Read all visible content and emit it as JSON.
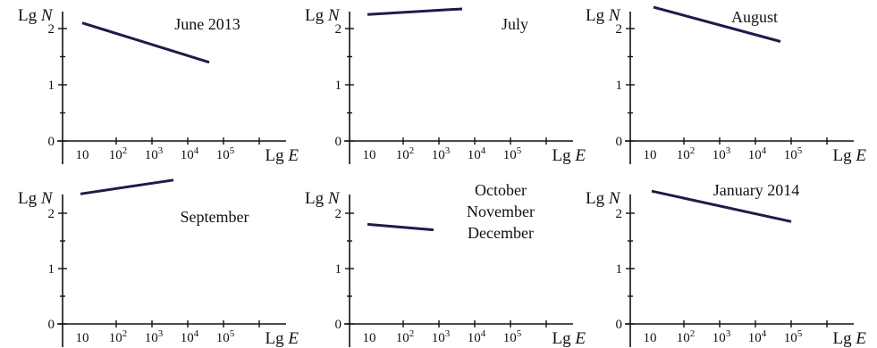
{
  "chart_data": [
    {
      "type": "line",
      "title_lines": [
        "June 2013"
      ],
      "x_label": {
        "prefix": "Lg ",
        "var": "E"
      },
      "y_label": {
        "prefix": "Lg ",
        "var": "N"
      },
      "x_ticks": [
        {
          "value": 1,
          "base": "10",
          "sup": ""
        },
        {
          "value": 2,
          "base": "10",
          "sup": "2"
        },
        {
          "value": 3,
          "base": "10",
          "sup": "3"
        },
        {
          "value": 4,
          "base": "10",
          "sup": "4"
        },
        {
          "value": 5,
          "base": "10",
          "sup": "5"
        }
      ],
      "y_ticks": [
        {
          "value": 0,
          "label": "0"
        },
        {
          "value": 1,
          "label": "1"
        },
        {
          "value": 2,
          "label": "2"
        }
      ],
      "x": [
        1.05,
        4.6
      ],
      "y": [
        2.1,
        1.4
      ]
    },
    {
      "type": "line",
      "title_lines": [
        "July"
      ],
      "x_label": {
        "prefix": "Lg ",
        "var": "E"
      },
      "y_label": {
        "prefix": "Lg ",
        "var": "N"
      },
      "x_ticks": [
        {
          "value": 1,
          "base": "10",
          "sup": ""
        },
        {
          "value": 2,
          "base": "10",
          "sup": "2"
        },
        {
          "value": 3,
          "base": "10",
          "sup": "3"
        },
        {
          "value": 4,
          "base": "10",
          "sup": "4"
        },
        {
          "value": 5,
          "base": "10",
          "sup": "5"
        }
      ],
      "y_ticks": [
        {
          "value": 0,
          "label": "0"
        },
        {
          "value": 1,
          "label": "1"
        },
        {
          "value": 2,
          "label": "2"
        }
      ],
      "x": [
        1.0,
        3.65
      ],
      "y": [
        2.25,
        2.35
      ]
    },
    {
      "type": "line",
      "title_lines": [
        "August"
      ],
      "x_label": {
        "prefix": "Lg ",
        "var": "E"
      },
      "y_label": {
        "prefix": "Lg ",
        "var": "N"
      },
      "x_ticks": [
        {
          "value": 1,
          "base": "10",
          "sup": ""
        },
        {
          "value": 2,
          "base": "10",
          "sup": "2"
        },
        {
          "value": 3,
          "base": "10",
          "sup": "3"
        },
        {
          "value": 4,
          "base": "10",
          "sup": "4"
        },
        {
          "value": 5,
          "base": "10",
          "sup": "5"
        }
      ],
      "y_ticks": [
        {
          "value": 0,
          "label": "0"
        },
        {
          "value": 1,
          "label": "1"
        },
        {
          "value": 2,
          "label": "2"
        }
      ],
      "x": [
        1.15,
        4.7
      ],
      "y": [
        2.38,
        1.77
      ]
    },
    {
      "type": "line",
      "title_lines": [
        "September"
      ],
      "x_label": {
        "prefix": "Lg ",
        "var": "E"
      },
      "y_label": {
        "prefix": "Lg ",
        "var": "N"
      },
      "x_ticks": [
        {
          "value": 1,
          "base": "10",
          "sup": ""
        },
        {
          "value": 2,
          "base": "10",
          "sup": "2"
        },
        {
          "value": 3,
          "base": "10",
          "sup": "3"
        },
        {
          "value": 4,
          "base": "10",
          "sup": "4"
        },
        {
          "value": 5,
          "base": "10",
          "sup": "5"
        }
      ],
      "y_ticks": [
        {
          "value": 0,
          "label": "0"
        },
        {
          "value": 1,
          "label": "1"
        },
        {
          "value": 2,
          "label": "2"
        }
      ],
      "x": [
        1.0,
        3.6
      ],
      "y": [
        2.35,
        2.6
      ]
    },
    {
      "type": "line",
      "title_lines": [
        "October",
        "November",
        "December"
      ],
      "x_label": {
        "prefix": "Lg ",
        "var": "E"
      },
      "y_label": {
        "prefix": "Lg ",
        "var": "N"
      },
      "x_ticks": [
        {
          "value": 1,
          "base": "10",
          "sup": ""
        },
        {
          "value": 2,
          "base": "10",
          "sup": "2"
        },
        {
          "value": 3,
          "base": "10",
          "sup": "3"
        },
        {
          "value": 4,
          "base": "10",
          "sup": "4"
        },
        {
          "value": 5,
          "base": "10",
          "sup": "5"
        }
      ],
      "y_ticks": [
        {
          "value": 0,
          "label": "0"
        },
        {
          "value": 1,
          "label": "1"
        },
        {
          "value": 2,
          "label": "2"
        }
      ],
      "x": [
        1.0,
        2.85
      ],
      "y": [
        1.8,
        1.7
      ]
    },
    {
      "type": "line",
      "title_lines": [
        "January 2014"
      ],
      "x_label": {
        "prefix": "Lg ",
        "var": "E"
      },
      "y_label": {
        "prefix": "Lg ",
        "var": "N"
      },
      "x_ticks": [
        {
          "value": 1,
          "base": "10",
          "sup": ""
        },
        {
          "value": 2,
          "base": "10",
          "sup": "2"
        },
        {
          "value": 3,
          "base": "10",
          "sup": "3"
        },
        {
          "value": 4,
          "base": "10",
          "sup": "4"
        },
        {
          "value": 5,
          "base": "10",
          "sup": "5"
        }
      ],
      "y_ticks": [
        {
          "value": 0,
          "label": "0"
        },
        {
          "value": 1,
          "label": "1"
        },
        {
          "value": 2,
          "label": "2"
        }
      ],
      "x": [
        1.1,
        5.0
      ],
      "y": [
        2.4,
        1.85
      ]
    }
  ]
}
